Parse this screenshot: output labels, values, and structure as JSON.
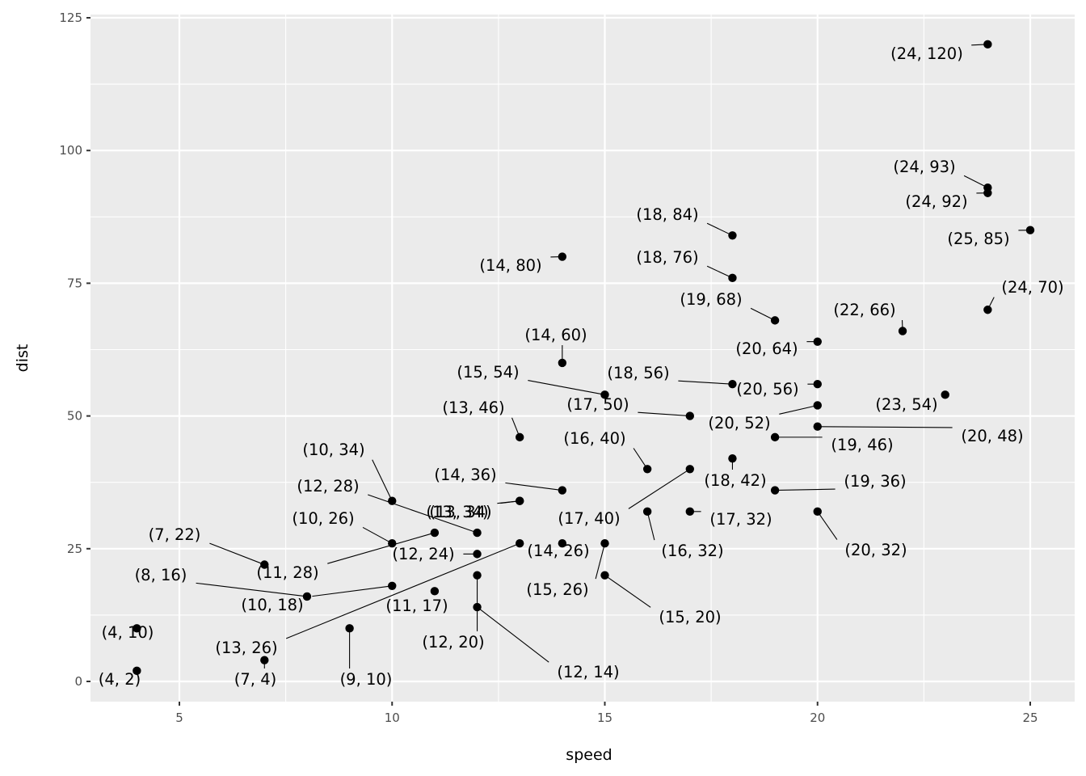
{
  "chart_data": {
    "type": "scatter",
    "title": "",
    "xlabel": "speed",
    "ylabel": "dist",
    "xlim": [
      3,
      26
    ],
    "ylim": [
      -4,
      125
    ],
    "x_ticks": [
      5,
      10,
      15,
      20,
      25
    ],
    "y_ticks": [
      0,
      25,
      50,
      75,
      100,
      125
    ],
    "x_tick_labels": [
      "5",
      "10",
      "15",
      "20",
      "25"
    ],
    "y_tick_labels": [
      "0",
      "25",
      "50",
      "75",
      "100",
      "125"
    ],
    "grid": true,
    "background": "#ebebeb",
    "point_color": "#000000",
    "points": [
      {
        "x": 4,
        "y": 2,
        "label": "(4, 2)"
      },
      {
        "x": 4,
        "y": 10,
        "label": "(4, 10)"
      },
      {
        "x": 7,
        "y": 4,
        "label": "(7, 4)"
      },
      {
        "x": 7,
        "y": 22,
        "label": "(7, 22)"
      },
      {
        "x": 8,
        "y": 16,
        "label": "(8, 16)"
      },
      {
        "x": 9,
        "y": 10,
        "label": "(9, 10)"
      },
      {
        "x": 10,
        "y": 18,
        "label": "(10, 18)"
      },
      {
        "x": 10,
        "y": 26,
        "label": "(10, 26)"
      },
      {
        "x": 10,
        "y": 34,
        "label": "(10, 34)"
      },
      {
        "x": 11,
        "y": 17,
        "label": "(11, 17)"
      },
      {
        "x": 11,
        "y": 28,
        "label": "(11, 28)"
      },
      {
        "x": 12,
        "y": 14,
        "label": "(12, 14)"
      },
      {
        "x": 12,
        "y": 20,
        "label": "(12, 20)"
      },
      {
        "x": 12,
        "y": 24,
        "label": "(12, 24)"
      },
      {
        "x": 12,
        "y": 28,
        "label": "(12, 28)"
      },
      {
        "x": 13,
        "y": 26,
        "label": "(13, 26)"
      },
      {
        "x": 13,
        "y": 34,
        "label": "(13, 34)"
      },
      {
        "x": 13,
        "y": 34,
        "label": "(13, 34)"
      },
      {
        "x": 13,
        "y": 46,
        "label": "(13, 46)"
      },
      {
        "x": 14,
        "y": 26,
        "label": "(14, 26)"
      },
      {
        "x": 14,
        "y": 36,
        "label": "(14, 36)"
      },
      {
        "x": 14,
        "y": 60,
        "label": "(14, 60)"
      },
      {
        "x": 14,
        "y": 80,
        "label": "(14, 80)"
      },
      {
        "x": 15,
        "y": 20,
        "label": "(15, 20)"
      },
      {
        "x": 15,
        "y": 26,
        "label": "(15, 26)"
      },
      {
        "x": 15,
        "y": 54,
        "label": "(15, 54)"
      },
      {
        "x": 16,
        "y": 32,
        "label": "(16, 32)"
      },
      {
        "x": 16,
        "y": 40,
        "label": "(16, 40)"
      },
      {
        "x": 17,
        "y": 32,
        "label": "(17, 32)"
      },
      {
        "x": 17,
        "y": 40,
        "label": "(17, 40)"
      },
      {
        "x": 17,
        "y": 50,
        "label": "(17, 50)"
      },
      {
        "x": 18,
        "y": 42,
        "label": "(18, 42)"
      },
      {
        "x": 18,
        "y": 56,
        "label": "(18, 56)"
      },
      {
        "x": 18,
        "y": 76,
        "label": "(18, 76)"
      },
      {
        "x": 18,
        "y": 84,
        "label": "(18, 84)"
      },
      {
        "x": 19,
        "y": 36,
        "label": "(19, 36)"
      },
      {
        "x": 19,
        "y": 46,
        "label": "(19, 46)"
      },
      {
        "x": 19,
        "y": 68,
        "label": "(19, 68)"
      },
      {
        "x": 20,
        "y": 32,
        "label": "(20, 32)"
      },
      {
        "x": 20,
        "y": 48,
        "label": "(20, 48)"
      },
      {
        "x": 20,
        "y": 52,
        "label": "(20, 52)"
      },
      {
        "x": 20,
        "y": 56,
        "label": "(20, 56)"
      },
      {
        "x": 20,
        "y": 64,
        "label": "(20, 64)"
      },
      {
        "x": 22,
        "y": 66,
        "label": "(22, 66)"
      },
      {
        "x": 23,
        "y": 54,
        "label": "(23, 54)"
      },
      {
        "x": 24,
        "y": 70,
        "label": "(24, 70)"
      },
      {
        "x": 24,
        "y": 92,
        "label": "(24, 92)"
      },
      {
        "x": 24,
        "y": 93,
        "label": "(24, 93)"
      },
      {
        "x": 24,
        "y": 120,
        "label": "(24, 120)"
      },
      {
        "x": 25,
        "y": 85,
        "label": "(25, 85)"
      }
    ]
  }
}
